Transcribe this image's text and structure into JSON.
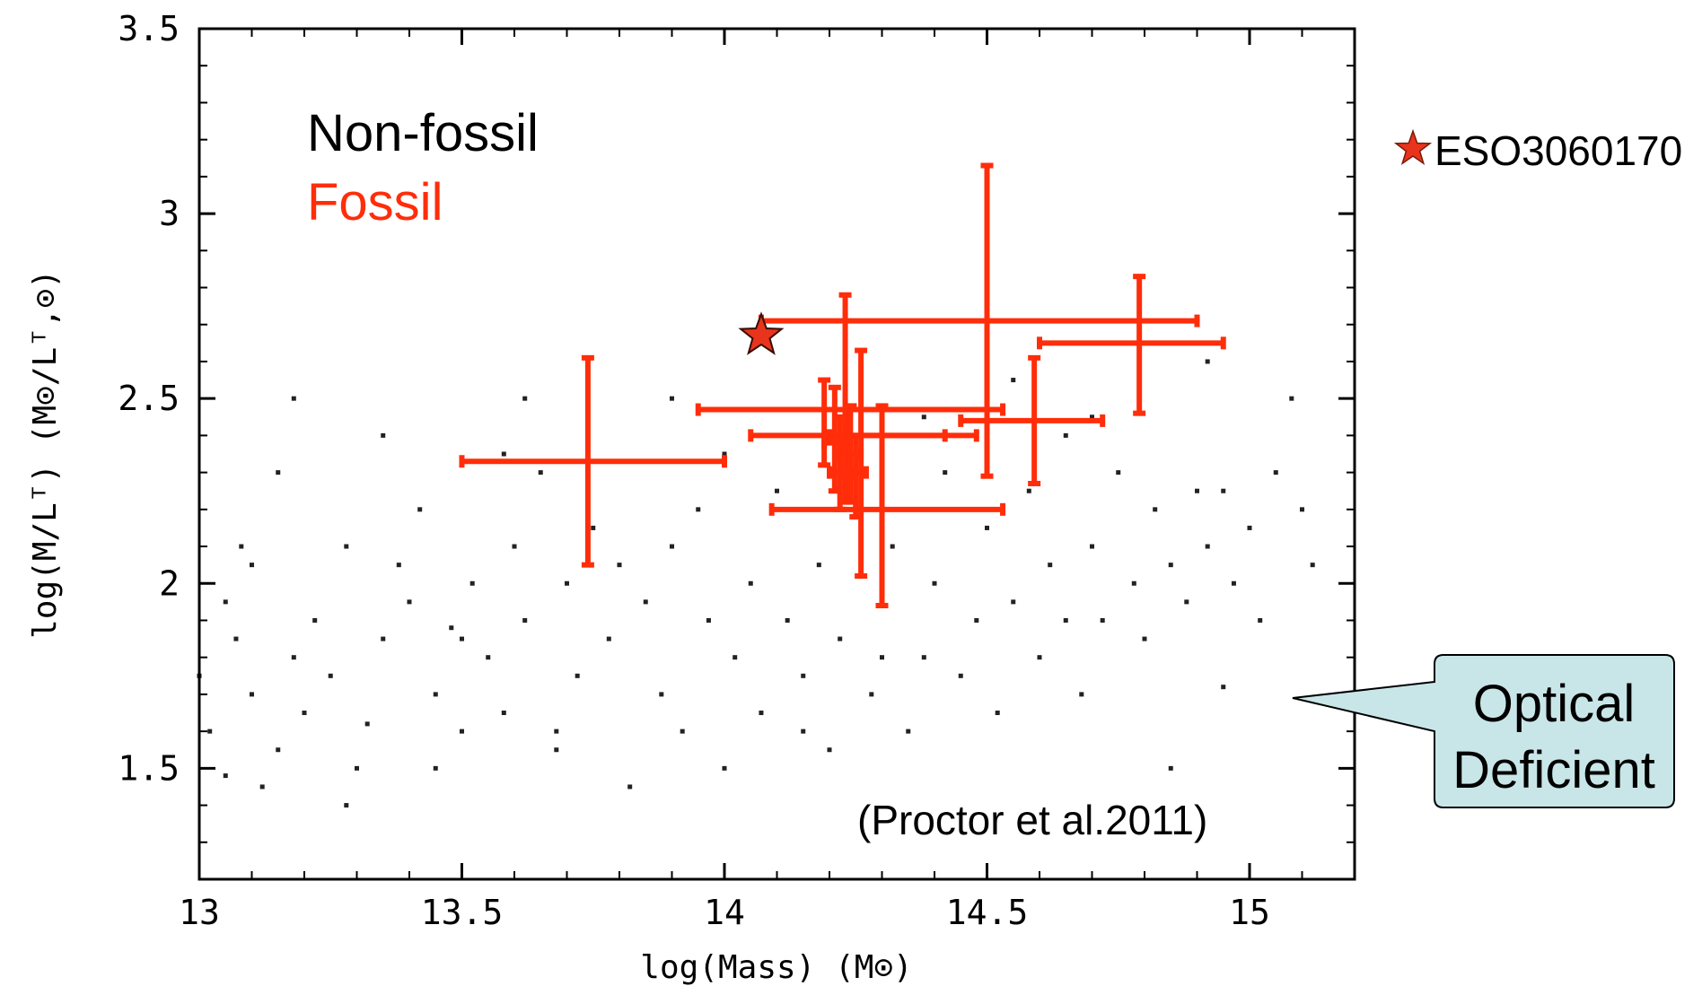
{
  "chart_data": {
    "type": "scatter",
    "xlabel": "log(Mass) (M⊙)",
    "ylabel": "log(M/Lᵀ) (M⊙/Lᵀ,⊙)",
    "xlim": [
      13,
      15.2
    ],
    "ylim": [
      1.2,
      3.5
    ],
    "x_ticks": [
      "13",
      "13.5",
      "14",
      "14.5",
      "15"
    ],
    "y_ticks": [
      "1.5",
      "2",
      "2.5",
      "3",
      "3.5"
    ],
    "x_tick_values": [
      13,
      13.5,
      14,
      14.5,
      15
    ],
    "y_tick_values": [
      1.5,
      2,
      2.5,
      3,
      3.5
    ],
    "grid": false,
    "legend": {
      "placement": "top-left",
      "entries": [
        {
          "label": "Non-fossil",
          "color": "#000000"
        },
        {
          "label": "Fossil",
          "color": "#ff2d0a"
        }
      ]
    },
    "colors": {
      "fossil": "#ff2d0a",
      "nonfossil": "#222222",
      "star": "#e8341c",
      "callout_fill": "#c8e6e8"
    },
    "series": [
      {
        "name": "Non-fossil",
        "points": [
          [
            13.0,
            1.75
          ],
          [
            13.02,
            1.6
          ],
          [
            13.05,
            1.95
          ],
          [
            13.07,
            1.85
          ],
          [
            13.1,
            1.7
          ],
          [
            13.12,
            1.45
          ],
          [
            13.15,
            1.55
          ],
          [
            13.18,
            1.8
          ],
          [
            13.2,
            1.65
          ],
          [
            13.22,
            1.9
          ],
          [
            13.25,
            1.75
          ],
          [
            13.28,
            2.1
          ],
          [
            13.3,
            1.5
          ],
          [
            13.32,
            1.62
          ],
          [
            13.35,
            1.85
          ],
          [
            13.38,
            2.05
          ],
          [
            13.4,
            1.95
          ],
          [
            13.42,
            2.2
          ],
          [
            13.45,
            1.7
          ],
          [
            13.48,
            1.88
          ],
          [
            13.5,
            1.6
          ],
          [
            13.52,
            2.0
          ],
          [
            13.55,
            1.8
          ],
          [
            13.58,
            1.65
          ],
          [
            13.6,
            2.1
          ],
          [
            13.62,
            1.9
          ],
          [
            13.65,
            2.3
          ],
          [
            13.68,
            1.55
          ],
          [
            13.7,
            2.0
          ],
          [
            13.72,
            1.75
          ],
          [
            13.75,
            2.15
          ],
          [
            13.78,
            1.85
          ],
          [
            13.8,
            2.05
          ],
          [
            13.82,
            1.45
          ],
          [
            13.85,
            1.95
          ],
          [
            13.88,
            1.7
          ],
          [
            13.9,
            2.1
          ],
          [
            13.92,
            1.6
          ],
          [
            13.95,
            2.2
          ],
          [
            13.97,
            1.9
          ],
          [
            14.0,
            2.35
          ],
          [
            14.02,
            1.8
          ],
          [
            14.05,
            2.0
          ],
          [
            14.07,
            1.65
          ],
          [
            14.1,
            2.25
          ],
          [
            14.12,
            1.9
          ],
          [
            14.15,
            1.75
          ],
          [
            14.18,
            2.05
          ],
          [
            14.2,
            1.55
          ],
          [
            14.22,
            1.85
          ],
          [
            14.25,
            2.4
          ],
          [
            14.28,
            1.7
          ],
          [
            14.3,
            1.95
          ],
          [
            14.32,
            2.1
          ],
          [
            14.35,
            1.6
          ],
          [
            14.38,
            1.8
          ],
          [
            14.4,
            2.0
          ],
          [
            14.42,
            2.3
          ],
          [
            14.45,
            1.75
          ],
          [
            14.48,
            1.9
          ],
          [
            14.5,
            2.15
          ],
          [
            14.52,
            1.65
          ],
          [
            14.55,
            1.95
          ],
          [
            14.58,
            2.25
          ],
          [
            14.6,
            1.8
          ],
          [
            14.62,
            2.05
          ],
          [
            14.65,
            2.4
          ],
          [
            14.68,
            1.7
          ],
          [
            14.7,
            2.1
          ],
          [
            14.72,
            1.9
          ],
          [
            14.75,
            2.3
          ],
          [
            14.78,
            2.0
          ],
          [
            14.8,
            1.85
          ],
          [
            14.82,
            2.2
          ],
          [
            14.85,
            2.05
          ],
          [
            14.88,
            1.95
          ],
          [
            14.9,
            2.25
          ],
          [
            14.92,
            2.1
          ],
          [
            14.95,
            1.72
          ],
          [
            14.97,
            2.0
          ],
          [
            15.0,
            2.15
          ],
          [
            15.02,
            1.9
          ],
          [
            15.05,
            2.3
          ],
          [
            15.08,
            2.5
          ],
          [
            15.1,
            2.2
          ],
          [
            15.12,
            2.05
          ],
          [
            13.08,
            2.1
          ],
          [
            13.15,
            2.3
          ],
          [
            13.28,
            1.4
          ],
          [
            13.45,
            1.5
          ],
          [
            13.58,
            2.35
          ],
          [
            13.62,
            2.5
          ],
          [
            13.35,
            2.4
          ],
          [
            13.18,
            2.5
          ],
          [
            14.92,
            2.6
          ],
          [
            14.85,
            1.5
          ],
          [
            13.9,
            2.5
          ],
          [
            14.15,
            1.6
          ],
          [
            14.0,
            1.5
          ],
          [
            14.3,
            1.8
          ],
          [
            13.5,
            1.85
          ],
          [
            14.65,
            1.9
          ],
          [
            14.45,
            2.2
          ],
          [
            13.05,
            1.48
          ],
          [
            13.1,
            2.05
          ],
          [
            14.55,
            2.55
          ],
          [
            14.7,
            2.45
          ],
          [
            14.95,
            2.25
          ],
          [
            13.68,
            1.6
          ],
          [
            14.38,
            2.45
          ]
        ]
      },
      {
        "name": "Fossil",
        "points": [
          {
            "x": 13.74,
            "y": 2.33,
            "xerr": [
              13.5,
              14.0
            ],
            "yerr": [
              2.05,
              2.61
            ]
          },
          {
            "x": 14.19,
            "y": 2.47,
            "xerr": [
              13.95,
              14.53
            ],
            "yerr": [
              2.32,
              2.55
            ]
          },
          {
            "x": 14.5,
            "y": 2.71,
            "xerr": [
              14.07,
              14.9
            ],
            "yerr": [
              2.29,
              3.13
            ]
          },
          {
            "x": 14.23,
            "y": 2.4,
            "xerr": [
              14.05,
              14.48
            ],
            "yerr": [
              2.22,
              2.78
            ]
          },
          {
            "x": 14.26,
            "y": 2.2,
            "xerr": [
              14.09,
              14.53
            ],
            "yerr": [
              2.02,
              2.63
            ]
          },
          {
            "x": 14.3,
            "y": 2.4,
            "xerr": [
              14.2,
              14.42
            ],
            "yerr": [
              1.94,
              2.48
            ]
          },
          {
            "x": 14.59,
            "y": 2.44,
            "xerr": [
              14.45,
              14.72
            ],
            "yerr": [
              2.27,
              2.61
            ]
          },
          {
            "x": 14.79,
            "y": 2.65,
            "xerr": [
              14.6,
              14.95
            ],
            "yerr": [
              2.46,
              2.83
            ]
          },
          {
            "x": 14.21,
            "y": 2.38,
            "xerr": [
              14.19,
              14.23
            ],
            "yerr": [
              2.25,
              2.53
            ]
          },
          {
            "x": 14.24,
            "y": 2.35,
            "xerr": [
              14.22,
              14.26
            ],
            "yerr": [
              2.22,
              2.48
            ]
          },
          {
            "x": 14.22,
            "y": 2.3,
            "xerr": [
              14.2,
              14.24
            ],
            "yerr": [
              2.2,
              2.45
            ]
          },
          {
            "x": 14.25,
            "y": 2.3,
            "xerr": [
              14.23,
              14.27
            ],
            "yerr": [
              2.18,
              2.4
            ]
          }
        ]
      },
      {
        "name": "ESO3060170",
        "points": [
          {
            "x": 14.07,
            "y": 2.67
          }
        ]
      }
    ],
    "annotations": [
      {
        "text": "(Proctor et al.2011)"
      },
      {
        "text": "ESO3060170"
      }
    ],
    "callout": {
      "line1": "Optical",
      "line2": "Deficient"
    }
  }
}
